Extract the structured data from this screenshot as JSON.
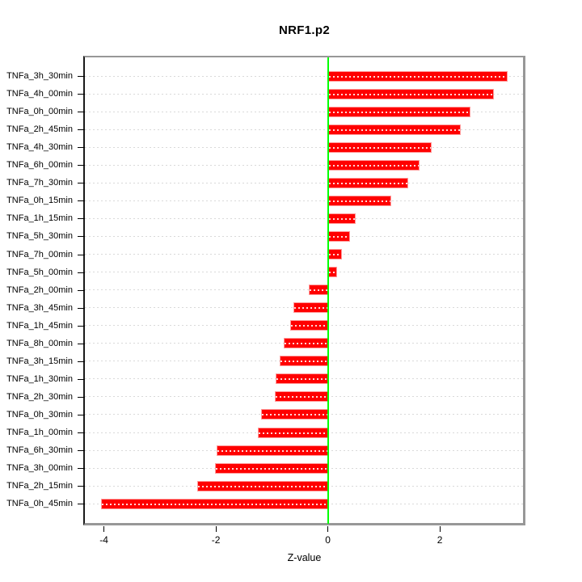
{
  "title": "NRF1.p2",
  "chart_data": {
    "type": "bar",
    "orientation": "horizontal",
    "title": "NRF1.p2",
    "xlabel": "Z-value",
    "categories": [
      "TNFa_3h_30min",
      "TNFa_4h_00min",
      "TNFa_0h_00min",
      "TNFa_2h_45min",
      "TNFa_4h_30min",
      "TNFa_6h_00min",
      "TNFa_7h_30min",
      "TNFa_0h_15min",
      "TNFa_1h_15min",
      "TNFa_5h_30min",
      "TNFa_7h_00min",
      "TNFa_5h_00min",
      "TNFa_2h_00min",
      "TNFa_3h_45min",
      "TNFa_1h_45min",
      "TNFa_8h_00min",
      "TNFa_3h_15min",
      "TNFa_1h_30min",
      "TNFa_2h_30min",
      "TNFa_0h_30min",
      "TNFa_1h_00min",
      "TNFa_6h_30min",
      "TNFa_3h_00min",
      "TNFa_2h_15min",
      "TNFa_0h_45min"
    ],
    "values": [
      3.21,
      2.96,
      2.55,
      2.38,
      1.85,
      1.64,
      1.44,
      1.13,
      0.5,
      0.39,
      0.25,
      0.16,
      -0.34,
      -0.61,
      -0.67,
      -0.79,
      -0.86,
      -0.93,
      -0.95,
      -1.19,
      -1.25,
      -1.99,
      -2.02,
      -2.34,
      -4.05
    ],
    "xlim": [
      -4.34,
      3.5
    ],
    "x_ticks": [
      -4,
      -2,
      0,
      2
    ],
    "grid": true,
    "legend": false,
    "colors": {
      "bar_fill": "#ff0000",
      "bar_border": "#ff9999",
      "zero_line": "#00ff00",
      "gridline": "#d9d9d9",
      "frame": "#979797",
      "axis": "#000000"
    }
  }
}
